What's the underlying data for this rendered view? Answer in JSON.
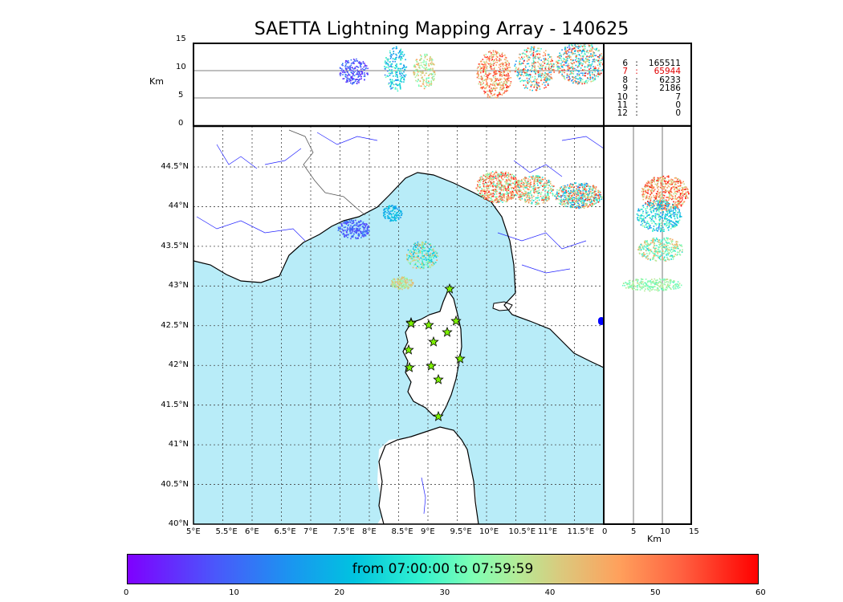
{
  "title": "SAETTA Lightning Mapping Array - 140625",
  "top_panel": {
    "ylabel": "Km",
    "yticks": [
      "15",
      "10",
      "5",
      "0"
    ],
    "counts": [
      {
        "level": "6",
        "value": "165511",
        "color": "#000000"
      },
      {
        "level": "7",
        "value": "65944",
        "color": "#e00000"
      },
      {
        "level": "8",
        "value": "6233",
        "color": "#000000"
      },
      {
        "level": "9",
        "value": "2186",
        "color": "#000000"
      },
      {
        "level": "10",
        "value": "7",
        "color": "#000000"
      },
      {
        "level": "11",
        "value": "0",
        "color": "#000000"
      },
      {
        "level": "12",
        "value": "0",
        "color": "#000000"
      }
    ]
  },
  "map": {
    "lat_labels": [
      "44.5°N",
      "44°N",
      "43.5°N",
      "43°N",
      "42.5°N",
      "42°N",
      "41.5°N",
      "41°N",
      "40.5°N",
      "40°N"
    ],
    "lon_labels": [
      "5°E",
      "5.5°E",
      "6°E",
      "6.5°E",
      "7°E",
      "7.5°E",
      "8°E",
      "8.5°E",
      "9°E",
      "9.5°E",
      "10°E",
      "10.5°E",
      "11°E",
      "11.5°E"
    ],
    "sea_color": "#b8ecf8",
    "station_color": "#7cf000",
    "station_count": 13
  },
  "side_panel": {
    "xlabel": "Km",
    "xticks": [
      "0",
      "5",
      "10",
      "15"
    ]
  },
  "colorbar": {
    "label": "from 07:00:00 to 07:59:59",
    "ticks": [
      "0",
      "10",
      "20",
      "30",
      "40",
      "50",
      "60"
    ],
    "range": [
      0,
      60
    ]
  }
}
